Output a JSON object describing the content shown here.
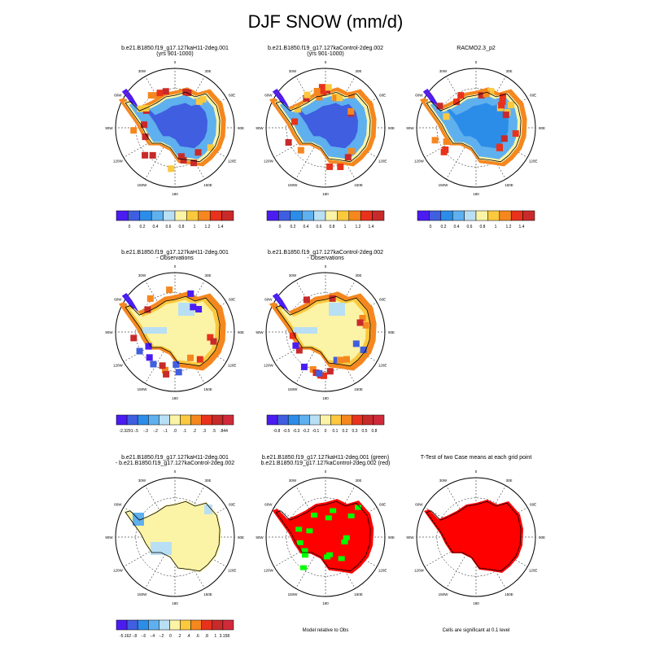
{
  "title": "DJF SNOW (mm/d)",
  "colors": {
    "abs": [
      "#4b1cf2",
      "#3f5ee0",
      "#2c8de8",
      "#5fb0ee",
      "#b8dff4",
      "#fbf3a6",
      "#fbc83e",
      "#f5871f",
      "#e8321c",
      "#c82a2a"
    ],
    "diff": [
      "#4b1cf2",
      "#3f5ee0",
      "#2c8de8",
      "#5fb0ee",
      "#b8dff4",
      "#fbf3a6",
      "#fbc83e",
      "#f5871f",
      "#e8321c",
      "#c82a2a",
      "#d02a3a"
    ],
    "land_outline": "#000000",
    "significant": "#ff0000",
    "green": "#00ff00"
  },
  "map_labels": {
    "lon": [
      "0",
      "30E",
      "60E",
      "90E",
      "120E",
      "150E",
      "180",
      "150W",
      "120W",
      "90W",
      "60W",
      "30W"
    ]
  },
  "chart_data": [
    {
      "type": "heatmap",
      "id": "p1",
      "title": "b.e21.B1850.f19_g17.127kaH11-2deg.001",
      "subtitle": "(yrs 901-1000)",
      "ticks": [
        "0",
        "0.2",
        "0.4",
        "0.6",
        "0.8",
        "1",
        "1.2",
        "1.4"
      ],
      "scale": "abs"
    },
    {
      "type": "heatmap",
      "id": "p2",
      "title": "b.e21.B1850.f19_g17.127kaControl-2deg.002",
      "subtitle": "(yrs 901-1000)",
      "ticks": [
        "0",
        "0.2",
        "0.4",
        "0.6",
        "0.8",
        "1",
        "1.2",
        "1.4"
      ],
      "scale": "abs"
    },
    {
      "type": "heatmap",
      "id": "p3",
      "title": "RACMO2.3_p2",
      "subtitle": "",
      "ticks": [
        "0",
        "0.2",
        "0.4",
        "0.6",
        "0.8",
        "1",
        "1.2",
        "1.4"
      ],
      "scale": "abs"
    },
    {
      "type": "heatmap",
      "id": "p4",
      "title": "b.e21.B1850.f19_g17.127kaH11-2deg.001",
      "subtitle": "- Observations",
      "ticks": [
        "-2.3291",
        "-.5",
        "-.3",
        "-.2",
        "-.1",
        ".0",
        ".1",
        ".2",
        ".3",
        ".5",
        ".844"
      ],
      "scale": "diff"
    },
    {
      "type": "heatmap",
      "id": "p5",
      "title": "b.e21.B1850.f19_g17.127kaControl-2deg.002",
      "subtitle": "- Observations",
      "ticks": [
        "-0.8",
        "-0.5",
        "-0.3",
        "-0.2",
        "-0.1",
        "0",
        "0.1",
        "0.2",
        "0.3",
        "0.5",
        "0.8"
      ],
      "scale": "diff"
    },
    {
      "type": "heatmap",
      "id": "p7",
      "title": "b.e21.B1850.f19_g17.127kaH11-2deg.001",
      "subtitle": "- b.e21.B1850.f19_g17.127kaControl-2deg.002",
      "ticks": [
        "-5.162",
        "-.8",
        "-.6",
        "-.4",
        "-.2",
        "0",
        ".2",
        ".4",
        ".6",
        ".8",
        "1",
        "3.158"
      ],
      "scale": "diff"
    },
    {
      "type": "heatmap",
      "id": "p8",
      "title": "b.e21.B1850.f19_g17.127kaH11-2deg.001 (green)",
      "subtitle": "b.e21.B1850.f19_g17.127kaControl-2deg.002 (red)",
      "note": "Model relative to Obs"
    },
    {
      "type": "heatmap",
      "id": "p9",
      "title": "T-Test of two Case means at each grid point",
      "subtitle": "",
      "note": "Cells are significant at 0.1 level"
    }
  ]
}
